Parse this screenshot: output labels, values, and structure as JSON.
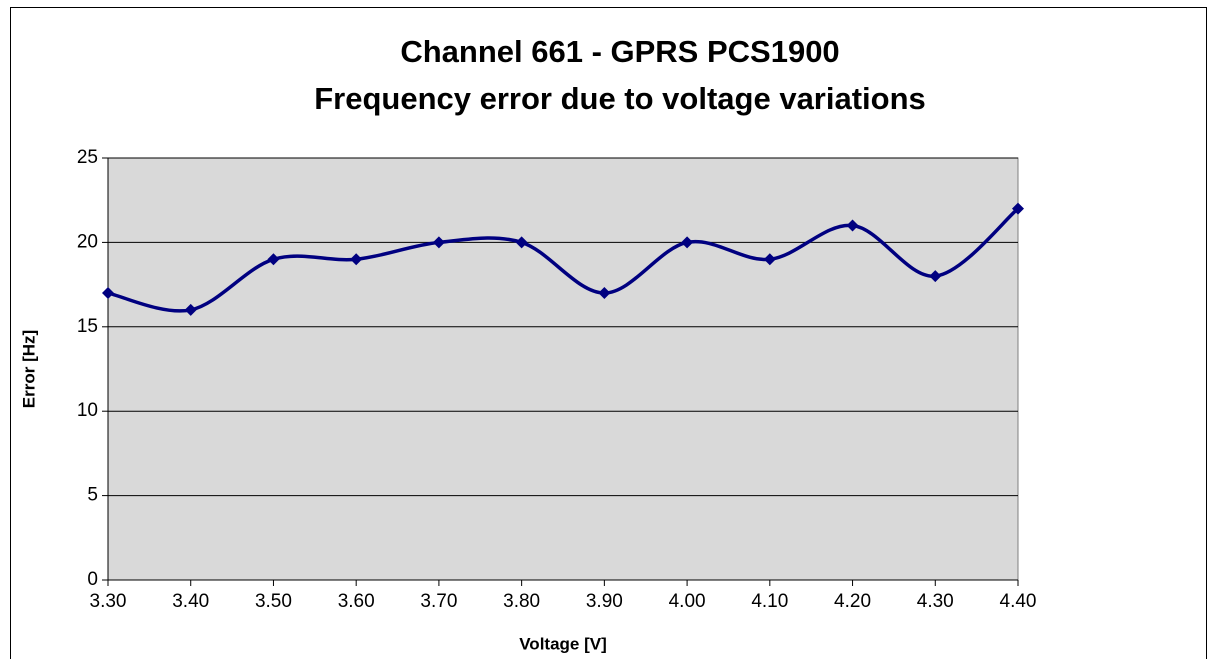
{
  "chart_data": {
    "type": "line",
    "title": "Channel 661 - GPRS PCS1900",
    "subtitle": "Frequency error due to voltage variations",
    "x_label": "Voltage [V]",
    "y_label": "Error [Hz]",
    "x": [
      3.3,
      3.4,
      3.5,
      3.6,
      3.7,
      3.8,
      3.9,
      4.0,
      4.1,
      4.2,
      4.3,
      4.4
    ],
    "series": [
      {
        "name": "Error",
        "color": "#000080",
        "values": [
          17,
          16,
          19,
          19,
          20,
          20,
          17,
          20,
          19,
          21,
          18,
          22
        ]
      }
    ],
    "xlim": [
      3.3,
      4.4
    ],
    "xticks": [
      {
        "value": 3.3,
        "label": "3.30"
      },
      {
        "value": 3.4,
        "label": "3.40"
      },
      {
        "value": 3.5,
        "label": "3.50"
      },
      {
        "value": 3.6,
        "label": "3.60"
      },
      {
        "value": 3.7,
        "label": "3.70"
      },
      {
        "value": 3.8,
        "label": "3.80"
      },
      {
        "value": 3.9,
        "label": "3.90"
      },
      {
        "value": 4.0,
        "label": "4.00"
      },
      {
        "value": 4.1,
        "label": "4.10"
      },
      {
        "value": 4.2,
        "label": "4.20"
      },
      {
        "value": 4.3,
        "label": "4.30"
      },
      {
        "value": 4.4,
        "label": "4.40"
      }
    ],
    "ylim": [
      0,
      25
    ],
    "yticks": [
      0,
      5,
      10,
      15,
      20,
      25
    ],
    "grid": true,
    "smooth": true,
    "plot_background": "#d9d9d9"
  }
}
